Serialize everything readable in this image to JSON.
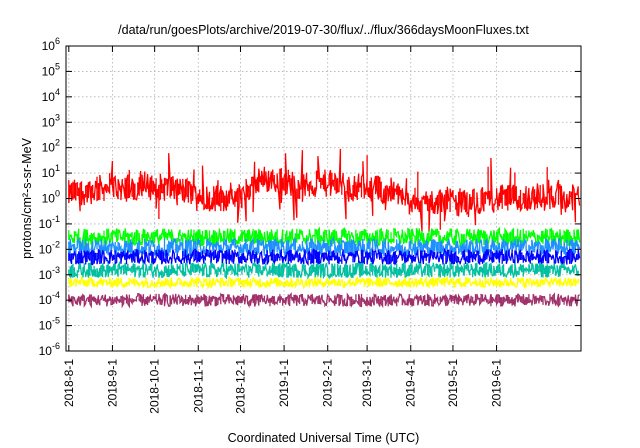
{
  "chart_data": {
    "type": "line",
    "title": "/data/run/goesPlots/archive/2019-07-30/flux/../flux/366daysMoonFluxes.txt",
    "xlabel": "Coordinated Universal Time (UTC)",
    "ylabel": "protons/cm²-s-sr-MeV",
    "yscale": "log",
    "ylim": [
      1e-06,
      1000000.0
    ],
    "y_ticks": [
      {
        "base": "10",
        "exp": "-6"
      },
      {
        "base": "10",
        "exp": "-5"
      },
      {
        "base": "10",
        "exp": "-4"
      },
      {
        "base": "10",
        "exp": "-3"
      },
      {
        "base": "10",
        "exp": "-2"
      },
      {
        "base": "10",
        "exp": "-1"
      },
      {
        "base": "10",
        "exp": "0"
      },
      {
        "base": "10",
        "exp": "1"
      },
      {
        "base": "10",
        "exp": "2"
      },
      {
        "base": "10",
        "exp": "3"
      },
      {
        "base": "10",
        "exp": "4"
      },
      {
        "base": "10",
        "exp": "5"
      },
      {
        "base": "10",
        "exp": "6"
      }
    ],
    "x_range": [
      "2018-07-30",
      "2019-07-31"
    ],
    "x_ticks": [
      "2018-8-1",
      "2018-9-1",
      "2018-10-1",
      "2018-11-1",
      "2018-12-1",
      "2019-1-1",
      "2019-2-1",
      "2019-3-1",
      "2019-4-1",
      "2019-5-1",
      "2019-6-1"
    ],
    "grid": true,
    "series": [
      {
        "color": "#ff0000",
        "x": [
          "2018-08-01",
          "2018-08-15",
          "2018-09-01",
          "2018-09-15",
          "2018-10-01",
          "2018-10-15",
          "2018-11-01",
          "2018-11-15",
          "2018-12-01",
          "2018-12-15",
          "2019-01-01",
          "2019-01-15",
          "2019-02-01",
          "2019-02-15",
          "2019-03-01",
          "2019-03-15",
          "2019-04-01",
          "2019-04-15",
          "2019-05-01",
          "2019-05-15",
          "2019-06-01",
          "2019-06-15",
          "2019-07-01",
          "2019-07-15",
          "2019-07-30"
        ],
        "y": [
          1.5,
          2.0,
          3.0,
          2.5,
          3.0,
          2.5,
          1.5,
          1.0,
          1.2,
          6.0,
          5.0,
          3.0,
          4.0,
          3.0,
          3.0,
          2.0,
          0.8,
          0.7,
          0.7,
          0.8,
          1.0,
          1.0,
          1.2,
          1.0,
          1.0
        ]
      },
      {
        "color": "#00ff00",
        "x": [
          "2018-08-01",
          "2019-07-30"
        ],
        "y": [
          0.03,
          0.03
        ]
      },
      {
        "color": "#1e8fff",
        "x": [
          "2018-08-01",
          "2019-07-30"
        ],
        "y": [
          0.012,
          0.012
        ]
      },
      {
        "color": "#0000ff",
        "x": [
          "2018-08-01",
          "2019-07-30"
        ],
        "y": [
          0.005,
          0.005
        ]
      },
      {
        "color": "#00c0a0",
        "x": [
          "2018-08-01",
          "2019-07-30"
        ],
        "y": [
          0.0015,
          0.0015
        ]
      },
      {
        "color": "#ffff00",
        "x": [
          "2018-08-01",
          "2019-07-30"
        ],
        "y": [
          0.0005,
          0.0005
        ]
      },
      {
        "color": "#a0306a",
        "x": [
          "2018-08-01",
          "2019-07-30"
        ],
        "y": [
          0.0001,
          0.0001
        ]
      }
    ]
  }
}
